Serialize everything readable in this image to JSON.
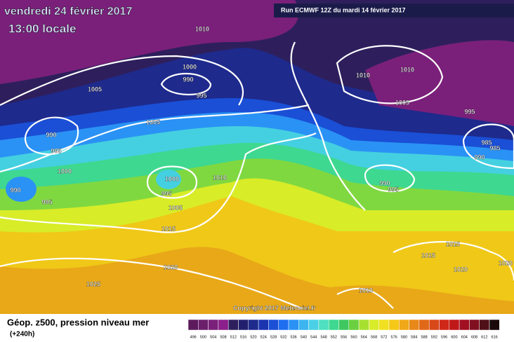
{
  "header": {
    "date": "vendredi 24 février 2017",
    "time": "13:00 locale",
    "run": "Run ECMWF 12Z du mardi 14 février 2017"
  },
  "isobar_labels": [
    1010,
    1000,
    990,
    995,
    1005,
    990,
    995,
    1000,
    990,
    995,
    1005,
    1000,
    995,
    1005,
    1010,
    1015,
    1020,
    1025,
    1010,
    1010,
    1005,
    995,
    985,
    985,
    990,
    990,
    995,
    1015,
    1015,
    1020,
    1020,
    1010
  ],
  "copyright": "Copyright 2017 Meteociel.fr",
  "legend": {
    "title": "Géop. z500, pression niveau mer",
    "lead": "(+240h)",
    "scale": [
      {
        "value": 496,
        "color": "#5c1a5c"
      },
      {
        "value": 500,
        "color": "#6b1f6b"
      },
      {
        "value": 504,
        "color": "#7a207a"
      },
      {
        "value": 508,
        "color": "#8c1f8c"
      },
      {
        "value": 512,
        "color": "#2e1f5c"
      },
      {
        "value": 516,
        "color": "#22206e"
      },
      {
        "value": 520,
        "color": "#1e2a8c"
      },
      {
        "value": 524,
        "color": "#1a34b0"
      },
      {
        "value": 528,
        "color": "#1a4fd6"
      },
      {
        "value": 532,
        "color": "#1e6ef0"
      },
      {
        "value": 536,
        "color": "#2a92f5"
      },
      {
        "value": 540,
        "color": "#3cb4f0"
      },
      {
        "value": 544,
        "color": "#4ad0e6"
      },
      {
        "value": 548,
        "color": "#4ee0c0"
      },
      {
        "value": 552,
        "color": "#3ed890"
      },
      {
        "value": 556,
        "color": "#40c860"
      },
      {
        "value": 560,
        "color": "#6ad040"
      },
      {
        "value": 564,
        "color": "#a8e030"
      },
      {
        "value": 568,
        "color": "#d8ec28"
      },
      {
        "value": 572,
        "color": "#f0e020"
      },
      {
        "value": 576,
        "color": "#f5c818"
      },
      {
        "value": 580,
        "color": "#f0a818"
      },
      {
        "value": 584,
        "color": "#e88818"
      },
      {
        "value": 588,
        "color": "#e06818"
      },
      {
        "value": 592,
        "color": "#d84818"
      },
      {
        "value": 596,
        "color": "#d02818"
      },
      {
        "value": 600,
        "color": "#c01818"
      },
      {
        "value": 604,
        "color": "#a01020"
      },
      {
        "value": 608,
        "color": "#801020"
      },
      {
        "value": 612,
        "color": "#501018"
      },
      {
        "value": 616,
        "color": "#1a0a0a"
      }
    ]
  }
}
